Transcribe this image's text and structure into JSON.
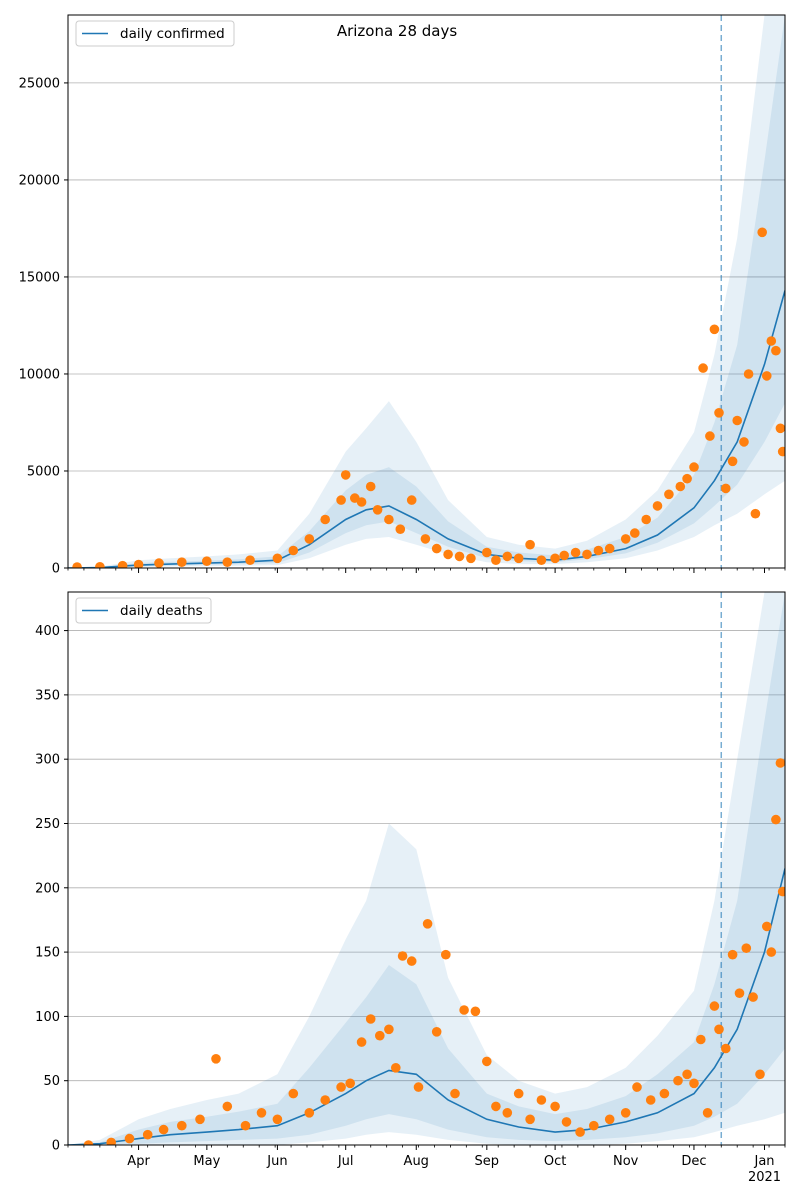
{
  "figure": {
    "title": "Arizona 28 days"
  },
  "colors": {
    "model_line": "#1f77b4",
    "observed": "#ff7f0e",
    "band": "#1f77b4",
    "grid": "#b0b0b0",
    "axis": "#000000"
  },
  "x_axis": {
    "start": "2020-03-01",
    "end": "2021-01-10",
    "month_labels": [
      {
        "label": "Apr",
        "date": "2020-04-01"
      },
      {
        "label": "May",
        "date": "2020-05-01"
      },
      {
        "label": "Jun",
        "date": "2020-06-01"
      },
      {
        "label": "Jul",
        "date": "2020-07-01"
      },
      {
        "label": "Aug",
        "date": "2020-08-01"
      },
      {
        "label": "Sep",
        "date": "2020-09-01"
      },
      {
        "label": "Oct",
        "date": "2020-10-01"
      },
      {
        "label": "Nov",
        "date": "2020-11-01"
      },
      {
        "label": "Dec",
        "date": "2020-12-01"
      },
      {
        "label": "Jan",
        "date": "2021-01-01"
      }
    ],
    "year_label": "2021",
    "forecast_date": "2020-12-13"
  },
  "chart_data": [
    {
      "type": "line",
      "legend": "daily confirmed",
      "legend_position": "top-left",
      "grid": "horizontal",
      "ylim": [
        0,
        28500
      ],
      "yticks": [
        0,
        5000,
        10000,
        15000,
        20000,
        25000
      ],
      "model": {
        "x": [
          "2020-03-01",
          "2020-03-15",
          "2020-04-01",
          "2020-04-15",
          "2020-05-01",
          "2020-05-15",
          "2020-06-01",
          "2020-06-15",
          "2020-07-01",
          "2020-07-10",
          "2020-07-20",
          "2020-08-01",
          "2020-08-15",
          "2020-09-01",
          "2020-09-15",
          "2020-10-01",
          "2020-10-15",
          "2020-11-01",
          "2020-11-15",
          "2020-12-01",
          "2020-12-10",
          "2020-12-20",
          "2021-01-01",
          "2021-01-10"
        ],
        "values": [
          0,
          20,
          150,
          200,
          250,
          300,
          400,
          1200,
          2500,
          3000,
          3200,
          2500,
          1500,
          700,
          500,
          400,
          600,
          1000,
          1700,
          3100,
          4500,
          6500,
          10500,
          14300
        ]
      },
      "bands": [
        {
          "lower": [
            0,
            0,
            50,
            80,
            100,
            120,
            150,
            500,
            1200,
            1500,
            1600,
            1200,
            700,
            300,
            200,
            200,
            300,
            500,
            900,
            1600,
            2200,
            2800,
            3800,
            4500
          ],
          "upper": [
            0,
            60,
            400,
            500,
            600,
            700,
            900,
            2800,
            6000,
            7200,
            8600,
            6500,
            3500,
            1600,
            1200,
            1000,
            1400,
            2500,
            4000,
            7000,
            11000,
            17000,
            28500,
            28500
          ]
        },
        {
          "lower": [
            0,
            5,
            90,
            130,
            160,
            190,
            250,
            800,
            1800,
            2200,
            2400,
            1800,
            1100,
            500,
            350,
            300,
            450,
            750,
            1300,
            2300,
            3200,
            4300,
            6500,
            8500
          ],
          "upper": [
            0,
            40,
            260,
            320,
            380,
            450,
            600,
            1900,
            4000,
            4800,
            5200,
            4200,
            2400,
            1100,
            800,
            650,
            950,
            1600,
            2600,
            4800,
            7500,
            11500,
            21000,
            28500
          ]
        }
      ],
      "observed": {
        "x": [
          "2020-03-05",
          "2020-03-15",
          "2020-03-25",
          "2020-04-01",
          "2020-04-10",
          "2020-04-20",
          "2020-05-01",
          "2020-05-10",
          "2020-05-20",
          "2020-06-01",
          "2020-06-08",
          "2020-06-15",
          "2020-06-22",
          "2020-06-29",
          "2020-07-01",
          "2020-07-05",
          "2020-07-08",
          "2020-07-12",
          "2020-07-15",
          "2020-07-20",
          "2020-07-25",
          "2020-07-30",
          "2020-08-05",
          "2020-08-10",
          "2020-08-15",
          "2020-08-20",
          "2020-08-25",
          "2020-09-01",
          "2020-09-05",
          "2020-09-10",
          "2020-09-15",
          "2020-09-20",
          "2020-09-25",
          "2020-10-01",
          "2020-10-05",
          "2020-10-10",
          "2020-10-15",
          "2020-10-20",
          "2020-10-25",
          "2020-11-01",
          "2020-11-05",
          "2020-11-10",
          "2020-11-15",
          "2020-11-20",
          "2020-11-25",
          "2020-11-28",
          "2020-12-01",
          "2020-12-05",
          "2020-12-08",
          "2020-12-10",
          "2020-12-12",
          "2020-12-15",
          "2020-12-18",
          "2020-12-20",
          "2020-12-23",
          "2020-12-25",
          "2020-12-28",
          "2020-12-31",
          "2021-01-02",
          "2021-01-04",
          "2021-01-06",
          "2021-01-08",
          "2021-01-09"
        ],
        "values": [
          50,
          60,
          120,
          180,
          250,
          300,
          350,
          300,
          400,
          500,
          900,
          1500,
          2500,
          3500,
          4800,
          3600,
          3400,
          4200,
          3000,
          2500,
          2000,
          3500,
          1500,
          1000,
          700,
          600,
          500,
          800,
          400,
          600,
          500,
          1200,
          400,
          500,
          650,
          800,
          700,
          900,
          1000,
          1500,
          1800,
          2500,
          3200,
          3800,
          4200,
          4600,
          5200,
          10300,
          6800,
          12300,
          8000,
          4100,
          5500,
          7600,
          6500,
          10000,
          2800,
          17300,
          9900,
          11700,
          11200,
          7200,
          6000
        ]
      }
    },
    {
      "type": "line",
      "legend": "daily deaths",
      "legend_position": "top-left",
      "grid": "horizontal",
      "ylim": [
        0,
        430
      ],
      "yticks": [
        0,
        50,
        100,
        150,
        200,
        250,
        300,
        350,
        400
      ],
      "model": {
        "x": [
          "2020-03-01",
          "2020-03-15",
          "2020-04-01",
          "2020-04-15",
          "2020-05-01",
          "2020-05-15",
          "2020-06-01",
          "2020-06-15",
          "2020-07-01",
          "2020-07-10",
          "2020-07-20",
          "2020-08-01",
          "2020-08-15",
          "2020-09-01",
          "2020-09-15",
          "2020-10-01",
          "2020-10-15",
          "2020-11-01",
          "2020-11-15",
          "2020-12-01",
          "2020-12-10",
          "2020-12-20",
          "2021-01-01",
          "2021-01-10"
        ],
        "values": [
          0,
          1,
          5,
          8,
          10,
          12,
          15,
          25,
          40,
          50,
          58,
          55,
          35,
          20,
          14,
          10,
          12,
          18,
          25,
          40,
          60,
          90,
          150,
          215
        ]
      },
      "bands": [
        {
          "lower": [
            0,
            0,
            0,
            0,
            0,
            0,
            0,
            2,
            5,
            8,
            10,
            8,
            4,
            1,
            0,
            0,
            0,
            1,
            3,
            6,
            10,
            15,
            20,
            25
          ],
          "upper": [
            0,
            4,
            20,
            28,
            35,
            40,
            55,
            100,
            160,
            190,
            250,
            230,
            130,
            70,
            50,
            40,
            45,
            60,
            85,
            120,
            190,
            300,
            430,
            430
          ]
        },
        {
          "lower": [
            0,
            0,
            1,
            2,
            3,
            4,
            5,
            8,
            15,
            20,
            24,
            20,
            12,
            6,
            4,
            3,
            4,
            6,
            9,
            15,
            22,
            32,
            55,
            75
          ],
          "upper": [
            0,
            2,
            12,
            18,
            22,
            26,
            32,
            60,
            95,
            115,
            140,
            125,
            75,
            40,
            30,
            24,
            28,
            38,
            55,
            80,
            125,
            190,
            330,
            430
          ]
        }
      ],
      "observed": {
        "x": [
          "2020-03-10",
          "2020-03-20",
          "2020-03-28",
          "2020-04-05",
          "2020-04-12",
          "2020-04-20",
          "2020-04-28",
          "2020-05-05",
          "2020-05-10",
          "2020-05-18",
          "2020-05-25",
          "2020-06-01",
          "2020-06-08",
          "2020-06-15",
          "2020-06-22",
          "2020-06-29",
          "2020-07-03",
          "2020-07-08",
          "2020-07-12",
          "2020-07-16",
          "2020-07-20",
          "2020-07-23",
          "2020-07-26",
          "2020-07-30",
          "2020-08-02",
          "2020-08-06",
          "2020-08-10",
          "2020-08-14",
          "2020-08-18",
          "2020-08-22",
          "2020-08-27",
          "2020-09-01",
          "2020-09-05",
          "2020-09-10",
          "2020-09-15",
          "2020-09-20",
          "2020-09-25",
          "2020-10-01",
          "2020-10-06",
          "2020-10-12",
          "2020-10-18",
          "2020-10-25",
          "2020-11-01",
          "2020-11-06",
          "2020-11-12",
          "2020-11-18",
          "2020-11-24",
          "2020-11-28",
          "2020-12-01",
          "2020-12-04",
          "2020-12-07",
          "2020-12-10",
          "2020-12-12",
          "2020-12-15",
          "2020-12-18",
          "2020-12-21",
          "2020-12-24",
          "2020-12-27",
          "2020-12-30",
          "2021-01-02",
          "2021-01-04",
          "2021-01-06",
          "2021-01-08",
          "2021-01-09"
        ],
        "values": [
          0,
          2,
          5,
          8,
          12,
          15,
          20,
          67,
          30,
          15,
          25,
          20,
          40,
          25,
          35,
          45,
          48,
          80,
          98,
          85,
          90,
          60,
          147,
          143,
          45,
          172,
          88,
          148,
          40,
          105,
          104,
          65,
          30,
          25,
          40,
          20,
          35,
          30,
          18,
          10,
          15,
          20,
          25,
          45,
          35,
          40,
          50,
          55,
          48,
          82,
          25,
          108,
          90,
          75,
          148,
          118,
          153,
          115,
          55,
          170,
          150,
          253,
          297,
          197
        ]
      }
    }
  ]
}
